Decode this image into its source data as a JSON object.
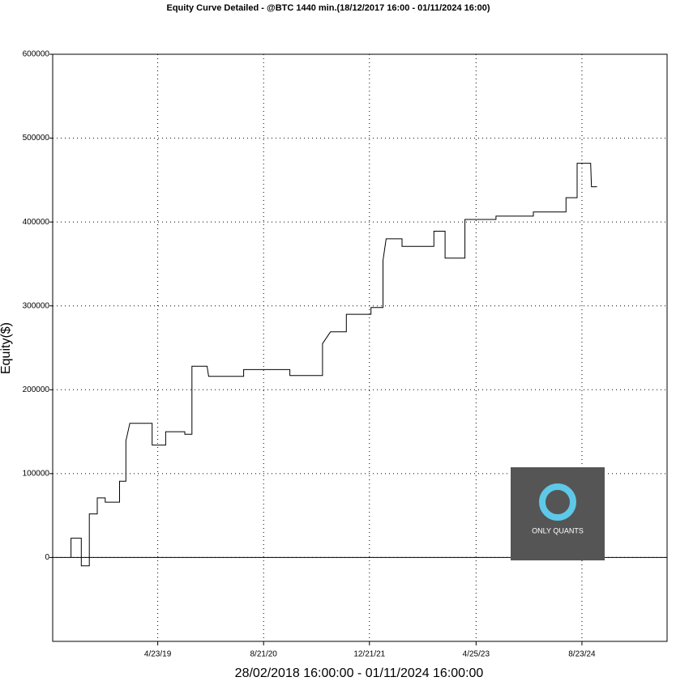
{
  "chart_data": {
    "type": "line",
    "title": "Equity Curve Detailed - @BTC 1440 min.(18/12/2017 16:00 - 01/11/2024 16:00)",
    "xlabel": "28/02/2018 16:00:00 - 01/11/2024 16:00:00",
    "ylabel": "Equity($)",
    "watermark": "ONLY QUANTS",
    "x": [
      2018.22,
      2018.22,
      2018.35,
      2018.35,
      2018.45,
      2018.45,
      2018.55,
      2018.55,
      2018.65,
      2018.65,
      2018.83,
      2018.83,
      2018.91,
      2018.91,
      2018.96,
      2019.24,
      2019.24,
      2019.41,
      2019.41,
      2019.65,
      2019.65,
      2019.74,
      2019.74,
      2019.93,
      2019.95,
      2020.39,
      2020.39,
      2020.97,
      2020.97,
      2021.38,
      2021.38,
      2021.48,
      2021.68,
      2021.68,
      2021.99,
      2021.99,
      2022.14,
      2022.14,
      2022.18,
      2022.38,
      2022.38,
      2022.78,
      2022.78,
      2022.92,
      2022.92,
      2023.17,
      2023.17,
      2023.56,
      2023.56,
      2024.03,
      2024.03,
      2024.44,
      2024.44,
      2024.58,
      2024.58,
      2024.75,
      2024.76,
      2024.83
    ],
    "series": [
      {
        "name": "Equity",
        "color": "#000000",
        "values": [
          0,
          23000,
          23000,
          -10000,
          -10000,
          52000,
          52000,
          71000,
          71000,
          66000,
          66000,
          91000,
          91000,
          139000,
          160000,
          160000,
          134000,
          134000,
          150000,
          150000,
          147000,
          147000,
          228000,
          228000,
          216000,
          216000,
          224000,
          224000,
          217000,
          217000,
          255000,
          269000,
          269000,
          290000,
          290000,
          298000,
          298000,
          354000,
          380000,
          380000,
          371000,
          371000,
          389000,
          389000,
          357000,
          357000,
          403000,
          403000,
          407000,
          407000,
          412000,
          412000,
          429000,
          429000,
          470000,
          470000,
          442000,
          442000
        ]
      }
    ],
    "xlim": [
      2017.99,
      2025.71
    ],
    "xticks": [
      {
        "value": 2019.31,
        "label": "4/23/19"
      },
      {
        "value": 2020.64,
        "label": "8/21/20"
      },
      {
        "value": 2021.97,
        "label": "12/21/21"
      },
      {
        "value": 2023.31,
        "label": "4/25/23"
      },
      {
        "value": 2024.64,
        "label": "8/23/24"
      }
    ],
    "ylim": [
      -100000,
      600000
    ],
    "yticks": [
      0,
      100000,
      200000,
      300000,
      400000,
      500000,
      600000
    ],
    "grid": true
  }
}
